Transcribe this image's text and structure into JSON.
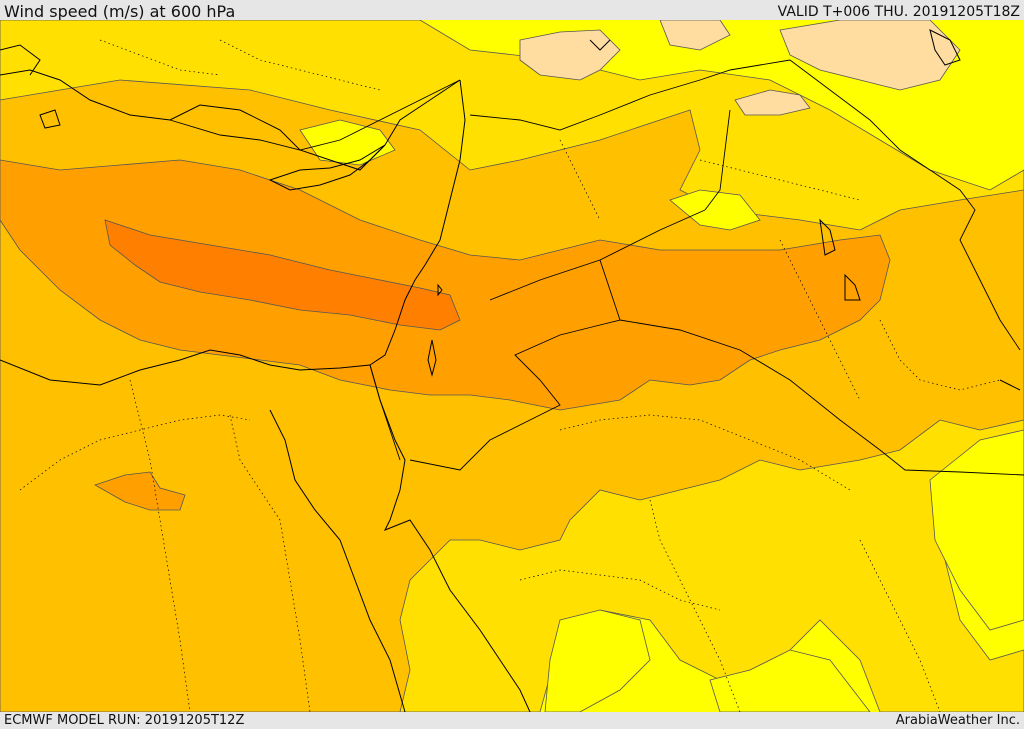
{
  "header": {
    "title": "Wind speed (m/s) at 600 hPa",
    "valid": "VALID T+006 THU. 20191205T18Z"
  },
  "footer": {
    "model_run": "ECMWF MODEL RUN: 20191205T12Z",
    "credit": "ArabiaWeather Inc."
  },
  "map": {
    "field": "wind-speed",
    "level": "600 hPa",
    "colors": {
      "band_1": "#ffff00",
      "band_2": "#ffe000",
      "band_3": "#ffc000",
      "band_4": "#ffa000",
      "band_5": "#ff8000",
      "calm": "#ffdca0",
      "land_outline": "#000000",
      "contour": "#555555"
    }
  }
}
